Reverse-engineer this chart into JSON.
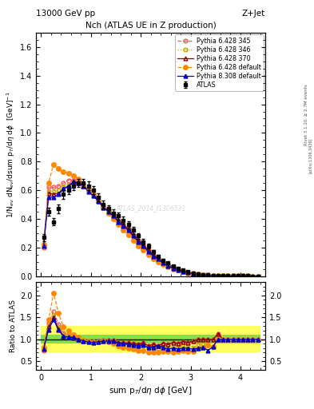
{
  "title_top": "13000 GeV pp",
  "title_right": "Z+Jet",
  "plot_title": "Nch (ATLAS UE in Z production)",
  "ylabel_main": "1/N$_{ev}$ dN$_{ev}$/dsum p$_T$/d$\\eta$ d$\\phi$  [GeV]$^{-1}$",
  "ylabel_ratio": "Ratio to ATLAS",
  "xlabel": "sum p$_T$/d$\\eta$ d$\\phi$ [GeV]",
  "right_label1": "Rivet 3.1.10, ≥ 2.7M events",
  "right_label2": "[arXiv:1306.3436]",
  "watermark": "ATLAS_2014_I1306531",
  "ylim_main": [
    0,
    1.7
  ],
  "ylim_ratio": [
    0.3,
    2.3
  ],
  "xlim": [
    -0.1,
    4.5
  ],
  "atlas_x": [
    0.05,
    0.15,
    0.25,
    0.35,
    0.45,
    0.55,
    0.65,
    0.75,
    0.85,
    0.95,
    1.05,
    1.15,
    1.25,
    1.35,
    1.45,
    1.55,
    1.65,
    1.75,
    1.85,
    1.95,
    2.05,
    2.15,
    2.25,
    2.35,
    2.45,
    2.55,
    2.65,
    2.75,
    2.85,
    2.95,
    3.05,
    3.15,
    3.25,
    3.35,
    3.45,
    3.55,
    3.65,
    3.75,
    3.85,
    3.95,
    4.05,
    4.15,
    4.25,
    4.35
  ],
  "atlas_y": [
    0.27,
    0.45,
    0.38,
    0.47,
    0.57,
    0.6,
    0.63,
    0.65,
    0.65,
    0.63,
    0.6,
    0.55,
    0.5,
    0.47,
    0.44,
    0.42,
    0.39,
    0.36,
    0.32,
    0.28,
    0.24,
    0.21,
    0.17,
    0.14,
    0.11,
    0.09,
    0.07,
    0.055,
    0.04,
    0.03,
    0.022,
    0.015,
    0.011,
    0.008,
    0.006,
    0.004,
    0.003,
    0.002,
    0.0015,
    0.001,
    0.0008,
    0.0006,
    0.0004,
    0.0003
  ],
  "atlas_yerr": [
    0.025,
    0.03,
    0.025,
    0.03,
    0.03,
    0.03,
    0.03,
    0.03,
    0.03,
    0.03,
    0.03,
    0.03,
    0.03,
    0.025,
    0.025,
    0.025,
    0.025,
    0.025,
    0.025,
    0.02,
    0.018,
    0.016,
    0.013,
    0.011,
    0.009,
    0.007,
    0.006,
    0.005,
    0.004,
    0.003,
    0.0025,
    0.002,
    0.0018,
    0.0014,
    0.001,
    0.001,
    0.001,
    0.001,
    0.001,
    0.001,
    0.001,
    0.001,
    0.001,
    0.001
  ],
  "p6_345_x": [
    0.05,
    0.15,
    0.25,
    0.35,
    0.45,
    0.55,
    0.65,
    0.75,
    0.85,
    0.95,
    1.05,
    1.15,
    1.25,
    1.35,
    1.45,
    1.55,
    1.65,
    1.75,
    1.85,
    1.95,
    2.05,
    2.15,
    2.25,
    2.35,
    2.45,
    2.55,
    2.65,
    2.75,
    2.85,
    2.95,
    3.05,
    3.15,
    3.25,
    3.35,
    3.45,
    3.55,
    3.65,
    3.75,
    3.85,
    3.95,
    4.05,
    4.15,
    4.25,
    4.35
  ],
  "p6_345_y": [
    0.2,
    0.62,
    0.62,
    0.63,
    0.65,
    0.67,
    0.67,
    0.67,
    0.64,
    0.6,
    0.57,
    0.53,
    0.49,
    0.46,
    0.43,
    0.39,
    0.36,
    0.33,
    0.29,
    0.25,
    0.22,
    0.18,
    0.15,
    0.12,
    0.1,
    0.08,
    0.065,
    0.05,
    0.038,
    0.028,
    0.021,
    0.015,
    0.011,
    0.008,
    0.006,
    0.0045,
    0.003,
    0.002,
    0.0015,
    0.001,
    0.0008,
    0.0006,
    0.0004,
    0.0003
  ],
  "p6_346_x": [
    0.05,
    0.15,
    0.25,
    0.35,
    0.45,
    0.55,
    0.65,
    0.75,
    0.85,
    0.95,
    1.05,
    1.15,
    1.25,
    1.35,
    1.45,
    1.55,
    1.65,
    1.75,
    1.85,
    1.95,
    2.05,
    2.15,
    2.25,
    2.35,
    2.45,
    2.55,
    2.65,
    2.75,
    2.85,
    2.95,
    3.05,
    3.15,
    3.25,
    3.35,
    3.45,
    3.55,
    3.65,
    3.75,
    3.85,
    3.95,
    4.05,
    4.15,
    4.25,
    4.35
  ],
  "p6_346_y": [
    0.21,
    0.59,
    0.59,
    0.6,
    0.62,
    0.64,
    0.65,
    0.65,
    0.63,
    0.59,
    0.56,
    0.52,
    0.48,
    0.45,
    0.42,
    0.38,
    0.35,
    0.32,
    0.28,
    0.24,
    0.21,
    0.17,
    0.14,
    0.11,
    0.09,
    0.07,
    0.058,
    0.045,
    0.034,
    0.025,
    0.018,
    0.013,
    0.01,
    0.007,
    0.005,
    0.004,
    0.003,
    0.002,
    0.0015,
    0.001,
    0.0008,
    0.0006,
    0.0004,
    0.0003
  ],
  "p6_370_x": [
    0.05,
    0.15,
    0.25,
    0.35,
    0.45,
    0.55,
    0.65,
    0.75,
    0.85,
    0.95,
    1.05,
    1.15,
    1.25,
    1.35,
    1.45,
    1.55,
    1.65,
    1.75,
    1.85,
    1.95,
    2.05,
    2.15,
    2.25,
    2.35,
    2.45,
    2.55,
    2.65,
    2.75,
    2.85,
    2.95,
    3.05,
    3.15,
    3.25,
    3.35,
    3.45,
    3.55,
    3.65,
    3.75,
    3.85,
    3.95,
    4.05,
    4.15,
    4.25,
    4.35
  ],
  "p6_370_y": [
    0.22,
    0.58,
    0.57,
    0.58,
    0.61,
    0.63,
    0.65,
    0.65,
    0.63,
    0.6,
    0.57,
    0.53,
    0.49,
    0.46,
    0.43,
    0.39,
    0.36,
    0.33,
    0.29,
    0.25,
    0.22,
    0.18,
    0.15,
    0.12,
    0.1,
    0.08,
    0.065,
    0.05,
    0.038,
    0.028,
    0.021,
    0.015,
    0.011,
    0.008,
    0.006,
    0.0045,
    0.003,
    0.002,
    0.0015,
    0.001,
    0.0008,
    0.0006,
    0.0004,
    0.0003
  ],
  "p6_def_x": [
    0.05,
    0.15,
    0.25,
    0.35,
    0.45,
    0.55,
    0.65,
    0.75,
    0.85,
    0.95,
    1.05,
    1.15,
    1.25,
    1.35,
    1.45,
    1.55,
    1.65,
    1.75,
    1.85,
    1.95,
    2.05,
    2.15,
    2.25,
    2.35,
    2.45,
    2.55,
    2.65,
    2.75,
    2.85,
    2.95,
    3.05,
    3.15,
    3.25,
    3.35,
    3.45,
    3.55,
    3.65,
    3.75,
    3.85,
    3.95,
    4.05,
    4.15,
    4.25,
    4.35
  ],
  "p6_def_y": [
    0.22,
    0.65,
    0.78,
    0.75,
    0.73,
    0.72,
    0.7,
    0.68,
    0.64,
    0.6,
    0.57,
    0.52,
    0.48,
    0.44,
    0.4,
    0.36,
    0.32,
    0.29,
    0.25,
    0.21,
    0.18,
    0.15,
    0.12,
    0.1,
    0.08,
    0.065,
    0.05,
    0.04,
    0.03,
    0.022,
    0.016,
    0.012,
    0.009,
    0.007,
    0.005,
    0.004,
    0.003,
    0.002,
    0.0015,
    0.001,
    0.0008,
    0.0006,
    0.0004,
    0.0003
  ],
  "p8_def_x": [
    0.05,
    0.15,
    0.25,
    0.35,
    0.45,
    0.55,
    0.65,
    0.75,
    0.85,
    0.95,
    1.05,
    1.15,
    1.25,
    1.35,
    1.45,
    1.55,
    1.65,
    1.75,
    1.85,
    1.95,
    2.05,
    2.15,
    2.25,
    2.35,
    2.45,
    2.55,
    2.65,
    2.75,
    2.85,
    2.95,
    3.05,
    3.15,
    3.25,
    3.35,
    3.45,
    3.55,
    3.65,
    3.75,
    3.85,
    3.95,
    4.05,
    4.15,
    4.25,
    4.35
  ],
  "p8_def_y": [
    0.21,
    0.55,
    0.55,
    0.57,
    0.61,
    0.63,
    0.66,
    0.65,
    0.63,
    0.59,
    0.56,
    0.52,
    0.48,
    0.45,
    0.42,
    0.38,
    0.35,
    0.32,
    0.28,
    0.24,
    0.21,
    0.17,
    0.14,
    0.12,
    0.09,
    0.07,
    0.056,
    0.043,
    0.032,
    0.024,
    0.017,
    0.012,
    0.009,
    0.006,
    0.005,
    0.004,
    0.003,
    0.002,
    0.0015,
    0.001,
    0.0008,
    0.0006,
    0.0004,
    0.0003
  ],
  "color_atlas": "#000000",
  "color_p6_345": "#ff5555",
  "color_p6_346": "#bbaa00",
  "color_p6_370": "#880000",
  "color_p6_def": "#ff8800",
  "color_p8_def": "#0000cc",
  "color_green_band": "#33cc33",
  "color_yellow_band": "#ffff44",
  "yticks_main": [
    0.0,
    0.2,
    0.4,
    0.6,
    0.8,
    1.0,
    1.2,
    1.4,
    1.6
  ],
  "yticks_ratio": [
    0.5,
    1.0,
    1.5,
    2.0
  ],
  "xticks": [
    0,
    1,
    2,
    3,
    4
  ]
}
